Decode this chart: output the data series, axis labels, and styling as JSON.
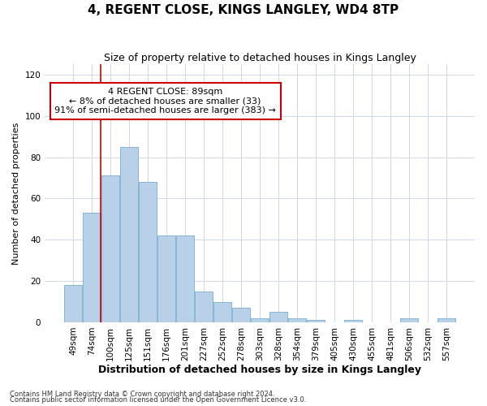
{
  "title": "4, REGENT CLOSE, KINGS LANGLEY, WD4 8TP",
  "subtitle": "Size of property relative to detached houses in Kings Langley",
  "xlabel": "Distribution of detached houses by size in Kings Langley",
  "ylabel": "Number of detached properties",
  "categories": [
    "49sqm",
    "74sqm",
    "100sqm",
    "125sqm",
    "151sqm",
    "176sqm",
    "201sqm",
    "227sqm",
    "252sqm",
    "278sqm",
    "303sqm",
    "328sqm",
    "354sqm",
    "379sqm",
    "405sqm",
    "430sqm",
    "455sqm",
    "481sqm",
    "506sqm",
    "532sqm",
    "557sqm"
  ],
  "values": [
    18,
    53,
    71,
    85,
    68,
    42,
    42,
    15,
    10,
    7,
    2,
    5,
    2,
    1,
    0,
    1,
    0,
    0,
    2,
    0,
    2
  ],
  "bar_color": "#b8d0e8",
  "bar_edge_color": "#7aadd0",
  "ylim": [
    0,
    125
  ],
  "yticks": [
    0,
    20,
    40,
    60,
    80,
    100,
    120
  ],
  "vline_color": "#cc0000",
  "annotation_text": "4 REGENT CLOSE: 89sqm\n← 8% of detached houses are smaller (33)\n91% of semi-detached houses are larger (383) →",
  "annotation_box_color": "#ffffff",
  "annotation_box_edge": "#cc0000",
  "footer1": "Contains HM Land Registry data © Crown copyright and database right 2024.",
  "footer2": "Contains public sector information licensed under the Open Government Licence v3.0.",
  "title_fontsize": 11,
  "subtitle_fontsize": 9,
  "xlabel_fontsize": 9,
  "ylabel_fontsize": 8,
  "tick_fontsize": 7.5,
  "annot_fontsize": 8,
  "footer_fontsize": 6,
  "bg_color": "#ffffff",
  "plot_bg_color": "#ffffff",
  "grid_color": "#d0d8e8"
}
